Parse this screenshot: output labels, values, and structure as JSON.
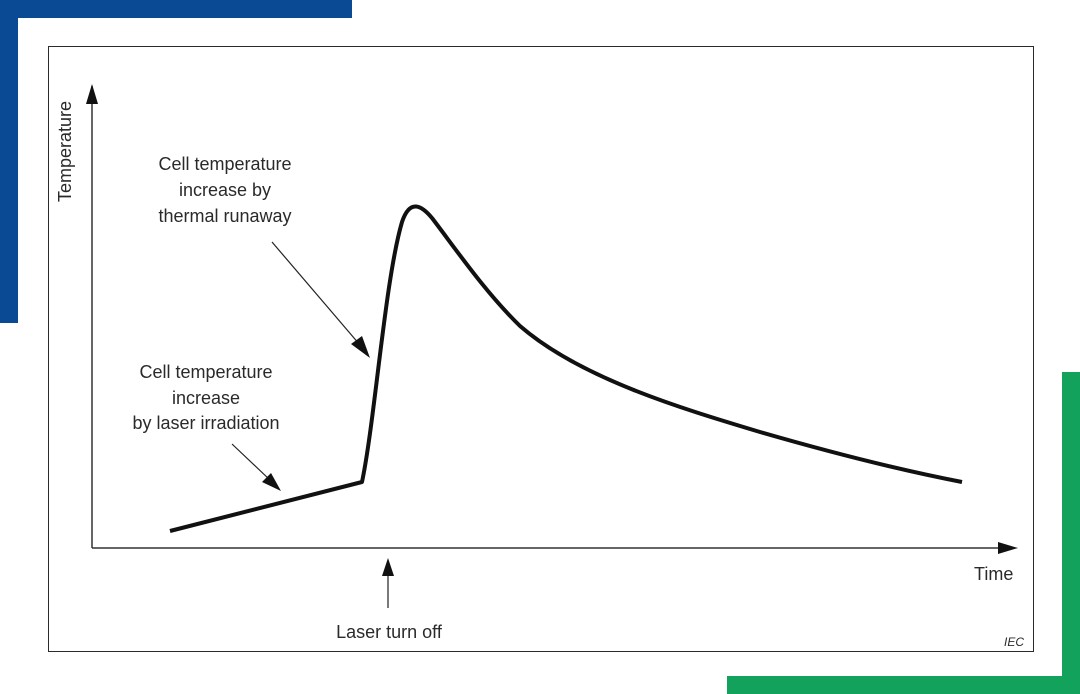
{
  "colors": {
    "blue_accent": "#0a4a94",
    "green_accent": "#12a25c",
    "line": "#111111",
    "text": "#2a2a2a"
  },
  "diagram": {
    "y_axis_label": "Temperature",
    "x_axis_label": "Time",
    "annotation_runaway": {
      "line1": "Cell temperature",
      "line2": "increase by",
      "line3": "thermal runaway"
    },
    "annotation_laser": {
      "line1": "Cell temperature",
      "line2": "increase",
      "line3": "by laser irradiation"
    },
    "marker_label": "Laser turn off",
    "source_mark": "IEC"
  }
}
